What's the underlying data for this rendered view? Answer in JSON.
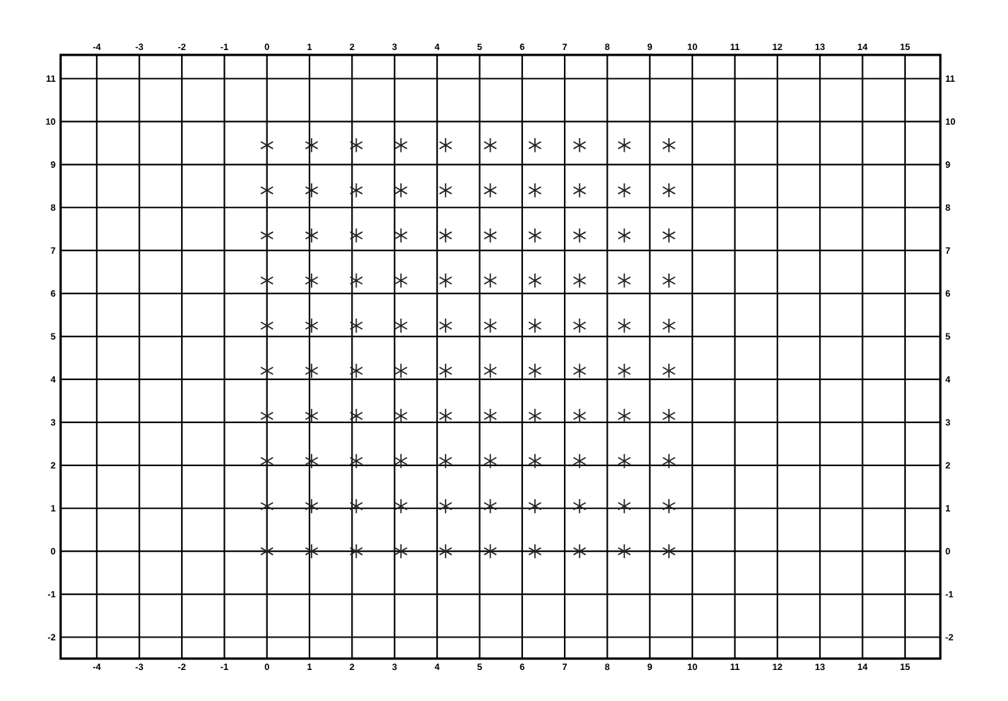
{
  "chart_data": {
    "type": "scatter",
    "x": [
      0,
      1.05,
      2.1,
      3.15,
      4.2,
      5.25,
      6.3,
      7.35,
      8.4,
      9.45,
      0,
      1.05,
      2.1,
      3.15,
      4.2,
      5.25,
      6.3,
      7.35,
      8.4,
      9.45,
      0,
      1.05,
      2.1,
      3.15,
      4.2,
      5.25,
      6.3,
      7.35,
      8.4,
      9.45,
      0,
      1.05,
      2.1,
      3.15,
      4.2,
      5.25,
      6.3,
      7.35,
      8.4,
      9.45,
      0,
      1.05,
      2.1,
      3.15,
      4.2,
      5.25,
      6.3,
      7.35,
      8.4,
      9.45,
      0,
      1.05,
      2.1,
      3.15,
      4.2,
      5.25,
      6.3,
      7.35,
      8.4,
      9.45,
      0,
      1.05,
      2.1,
      3.15,
      4.2,
      5.25,
      6.3,
      7.35,
      8.4,
      9.45,
      0,
      1.05,
      2.1,
      3.15,
      4.2,
      5.25,
      6.3,
      7.35,
      8.4,
      9.45,
      0,
      1.05,
      2.1,
      3.15,
      4.2,
      5.25,
      6.3,
      7.35,
      8.4,
      9.45,
      0,
      1.05,
      2.1,
      3.15,
      4.2,
      5.25,
      6.3,
      7.35,
      8.4,
      9.45
    ],
    "values": [
      0,
      0,
      0,
      0,
      0,
      0,
      0,
      0,
      0,
      0,
      1.05,
      1.05,
      1.05,
      1.05,
      1.05,
      1.05,
      1.05,
      1.05,
      1.05,
      1.05,
      2.1,
      2.1,
      2.1,
      2.1,
      2.1,
      2.1,
      2.1,
      2.1,
      2.1,
      2.1,
      3.15,
      3.15,
      3.15,
      3.15,
      3.15,
      3.15,
      3.15,
      3.15,
      3.15,
      3.15,
      4.2,
      4.2,
      4.2,
      4.2,
      4.2,
      4.2,
      4.2,
      4.2,
      4.2,
      4.2,
      5.25,
      5.25,
      5.25,
      5.25,
      5.25,
      5.25,
      5.25,
      5.25,
      5.25,
      5.25,
      6.3,
      6.3,
      6.3,
      6.3,
      6.3,
      6.3,
      6.3,
      6.3,
      6.3,
      6.3,
      7.35,
      7.35,
      7.35,
      7.35,
      7.35,
      7.35,
      7.35,
      7.35,
      7.35,
      7.35,
      8.4,
      8.4,
      8.4,
      8.4,
      8.4,
      8.4,
      8.4,
      8.4,
      8.4,
      8.4,
      9.45,
      9.45,
      9.45,
      9.45,
      9.45,
      9.45,
      9.45,
      9.45,
      9.45,
      9.45
    ],
    "color": "#222222",
    "marker": "cross",
    "grid": true,
    "xlim": [
      -4.85,
      15.83
    ],
    "ylim": [
      -2.5,
      11.55
    ],
    "xticks": [
      -4,
      -3,
      -2,
      -1,
      0,
      1,
      2,
      3,
      4,
      5,
      6,
      7,
      8,
      9,
      10,
      11,
      12,
      13,
      14,
      15
    ],
    "yticks": [
      -2,
      -1,
      0,
      1,
      2,
      3,
      4,
      5,
      6,
      7,
      8,
      9,
      10,
      11
    ],
    "x2lim": [
      -4.85,
      15.83
    ],
    "x2ticks": [
      -4,
      -3,
      -2,
      -1,
      0,
      1,
      2,
      3,
      4,
      5,
      6,
      7,
      8,
      9,
      10,
      11,
      12,
      13,
      14,
      15
    ],
    "y2lim": [
      -2.5,
      11.55
    ],
    "y2ticks": [
      -2,
      -1,
      0,
      1,
      2,
      3,
      4,
      5,
      6,
      7,
      8,
      9,
      10,
      11
    ]
  }
}
